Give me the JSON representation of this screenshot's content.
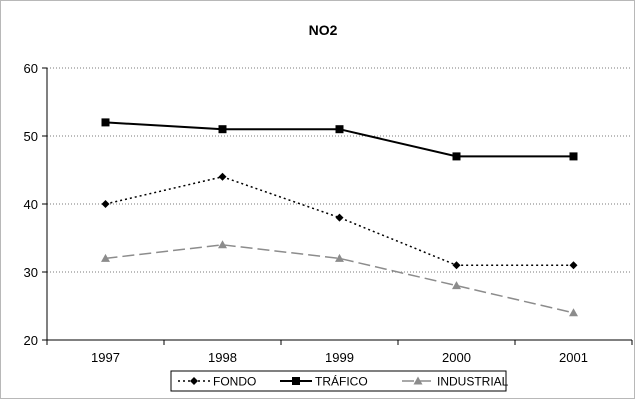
{
  "chart_data": {
    "type": "line",
    "title": "NO2",
    "categories": [
      "1997",
      "1998",
      "1999",
      "2000",
      "2001"
    ],
    "ylim": [
      20,
      60
    ],
    "yticks": [
      20,
      30,
      40,
      50,
      60
    ],
    "grid": "horizontal dotted",
    "legend_position": "bottom",
    "series": [
      {
        "name": "FONDO",
        "values": [
          40,
          44,
          38,
          31,
          31
        ],
        "color": "#000000",
        "line": "dotted",
        "marker": "diamond"
      },
      {
        "name": "TRÁFICO",
        "values": [
          52,
          51,
          51,
          47,
          47
        ],
        "color": "#000000",
        "line": "solid",
        "marker": "square"
      },
      {
        "name": "INDUSTRIAL",
        "values": [
          32,
          34,
          32,
          28,
          24
        ],
        "color": "#8c8c8c",
        "line": "dashed",
        "marker": "triangle"
      }
    ]
  }
}
